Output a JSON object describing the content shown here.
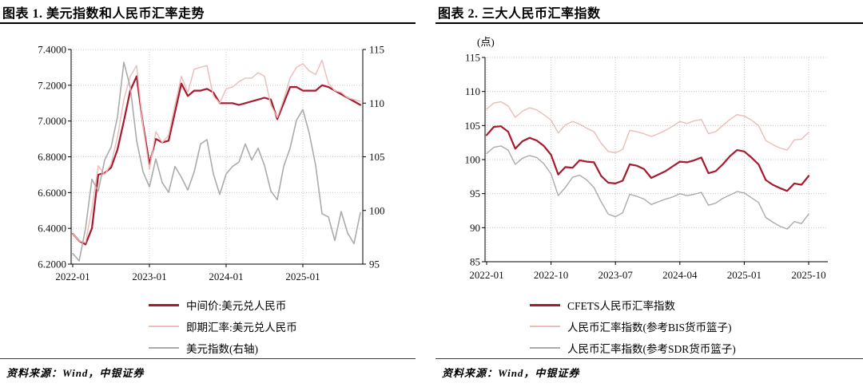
{
  "accent_colors": {
    "dark_red": "#a6192e",
    "light_pink": "#ecbcb8",
    "gray": "#ababab"
  },
  "panels": [
    {
      "source_label": "资料来源：Wind，中银证券"
    },
    {
      "source_label": "资料来源：Wind，中银证券"
    }
  ],
  "chart_data": [
    {
      "type": "line",
      "title": "图表 1. 美元指数和人民币汇率走势",
      "x_start": "2022-01",
      "x_end": "2025-10",
      "x_frequency": "monthly",
      "x_ticks": [
        "2022-01",
        "2023-01",
        "2024-01",
        "2025-01"
      ],
      "x_tick_month_index": [
        0,
        12,
        24,
        36
      ],
      "grid": "dotted",
      "legend_position": "bottom",
      "axes": {
        "left": {
          "range": [
            6.2,
            7.4
          ],
          "ticks": [
            "7.4000",
            "7.2000",
            "7.0000",
            "6.8000",
            "6.6000",
            "6.4000",
            "6.2000"
          ]
        },
        "right": {
          "range": [
            95,
            115
          ],
          "ticks": [
            "115",
            "110",
            "105",
            "100",
            "95"
          ]
        }
      },
      "series": [
        {
          "name": "中间价:美元兑人民币",
          "axis": "left",
          "color": "#a6192e",
          "width": 2.2,
          "values": [
            6.37,
            6.33,
            6.31,
            6.4,
            6.7,
            6.71,
            6.74,
            6.84,
            7.0,
            7.17,
            7.25,
            6.98,
            6.76,
            6.9,
            6.88,
            6.89,
            7.05,
            7.21,
            7.14,
            7.17,
            7.17,
            7.18,
            7.16,
            7.1,
            7.1,
            7.1,
            7.09,
            7.1,
            7.11,
            7.12,
            7.13,
            7.12,
            7.01,
            7.1,
            7.19,
            7.19,
            7.17,
            7.17,
            7.17,
            7.2,
            7.19,
            7.17,
            7.15,
            7.13,
            7.11,
            7.09
          ]
        },
        {
          "name": "即期汇率:美元兑人民币",
          "axis": "left",
          "color": "#ecbcb8",
          "width": 1.4,
          "values": [
            6.37,
            6.33,
            6.32,
            6.51,
            6.75,
            6.7,
            6.76,
            6.91,
            7.12,
            7.25,
            7.31,
            6.97,
            6.73,
            6.94,
            6.88,
            6.92,
            7.09,
            7.25,
            7.16,
            7.29,
            7.3,
            7.31,
            7.14,
            7.1,
            7.18,
            7.19,
            7.22,
            7.24,
            7.24,
            7.27,
            7.25,
            7.09,
            7.02,
            7.12,
            7.24,
            7.3,
            7.32,
            7.28,
            7.26,
            7.34,
            7.21,
            7.17,
            7.16,
            7.13,
            7.12,
            7.11
          ]
        },
        {
          "name": "美元指数(右轴)",
          "axis": "right",
          "color": "#ababab",
          "width": 1.6,
          "values": [
            96.0,
            95.3,
            98.3,
            102.9,
            101.8,
            104.7,
            105.9,
            108.7,
            113.8,
            111.5,
            106.5,
            103.6,
            102.2,
            104.8,
            102.6,
            101.7,
            104.1,
            103.1,
            101.9,
            103.6,
            106.2,
            106.6,
            103.4,
            101.5,
            103.4,
            104.1,
            104.5,
            106.2,
            104.7,
            105.8,
            104.2,
            101.8,
            101.0,
            104.1,
            105.8,
            108.4,
            109.4,
            107.2,
            104.2,
            99.7,
            99.4,
            97.2,
            99.9,
            97.9,
            96.9,
            99.8
          ]
        }
      ]
    },
    {
      "type": "line",
      "title": "图表 2. 三大人民币汇率指数",
      "unit_label": "(点)",
      "x_start": "2022-01",
      "x_end": "2025-10",
      "x_frequency": "monthly",
      "x_ticks": [
        "2022-01",
        "2022-10",
        "2023-07",
        "2024-04",
        "2025-01",
        "2025-10"
      ],
      "x_tick_month_index": [
        0,
        9,
        18,
        27,
        36,
        45
      ],
      "grid": "dotted",
      "legend_position": "bottom",
      "axes": {
        "left": {
          "range": [
            85,
            115
          ],
          "ticks": [
            "115",
            "110",
            "105",
            "100",
            "95",
            "90",
            "85"
          ]
        }
      },
      "series": [
        {
          "name": "CFETS人民币汇率指数",
          "axis": "left",
          "color": "#a6192e",
          "width": 2.2,
          "values": [
            103.6,
            104.8,
            104.9,
            104.1,
            101.6,
            102.7,
            103.2,
            102.8,
            102.0,
            100.7,
            97.8,
            98.9,
            98.8,
            99.9,
            99.7,
            99.6,
            97.6,
            96.6,
            96.5,
            96.9,
            99.3,
            99.1,
            98.6,
            97.3,
            97.8,
            98.3,
            99.0,
            99.7,
            99.6,
            99.9,
            100.3,
            98.0,
            98.3,
            99.3,
            100.5,
            101.4,
            101.2,
            100.3,
            99.3,
            97.0,
            96.3,
            95.8,
            95.4,
            96.5,
            96.3,
            97.6
          ]
        },
        {
          "name": "人民币汇率指数(参考BIS货币篮子)",
          "axis": "left",
          "color": "#ecbcb8",
          "width": 1.4,
          "values": [
            107.4,
            108.3,
            108.5,
            107.9,
            106.2,
            107.1,
            107.6,
            107.3,
            106.6,
            105.8,
            103.9,
            105.1,
            105.6,
            105.2,
            104.6,
            104.1,
            102.4,
            101.2,
            101.0,
            101.5,
            104.3,
            104.1,
            103.8,
            103.4,
            103.8,
            104.3,
            104.9,
            105.6,
            105.3,
            105.7,
            105.9,
            103.8,
            104.1,
            105.0,
            105.9,
            106.6,
            106.4,
            105.8,
            105.0,
            102.8,
            102.2,
            101.7,
            101.4,
            102.9,
            103.0,
            104.0
          ]
        },
        {
          "name": "人民币汇率指数(参考SDR货币篮子)",
          "axis": "left",
          "color": "#ababab",
          "width": 1.4,
          "values": [
            100.9,
            101.8,
            102.0,
            101.4,
            99.3,
            100.2,
            100.6,
            100.3,
            99.4,
            97.9,
            94.7,
            95.9,
            97.4,
            97.7,
            97.0,
            95.9,
            93.8,
            92.0,
            91.6,
            92.2,
            94.9,
            94.6,
            94.2,
            93.4,
            93.8,
            94.2,
            94.5,
            95.0,
            94.7,
            94.9,
            95.2,
            93.3,
            93.6,
            94.3,
            94.8,
            95.3,
            95.1,
            94.4,
            93.7,
            91.5,
            90.8,
            90.2,
            89.8,
            90.9,
            90.6,
            92.0
          ]
        }
      ]
    }
  ]
}
